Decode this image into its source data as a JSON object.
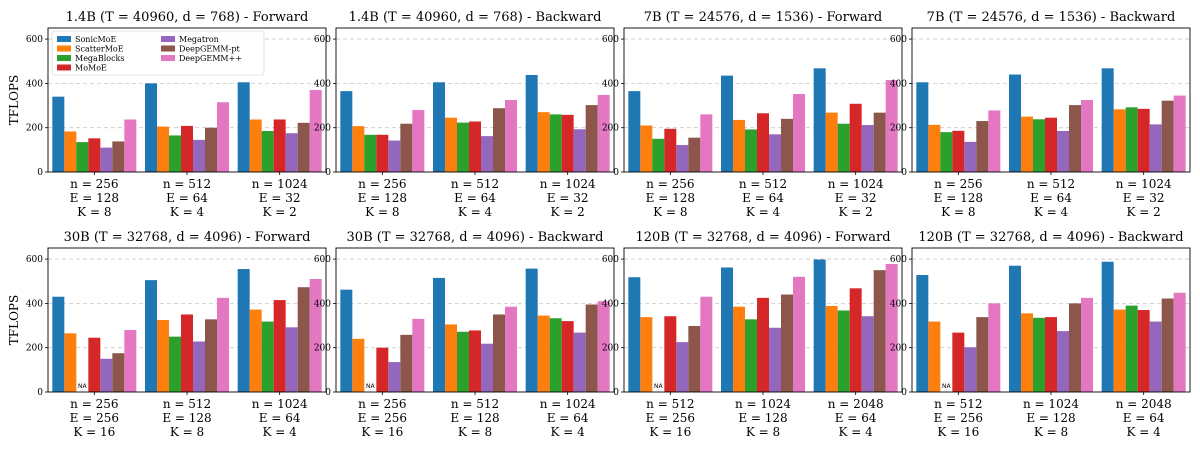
{
  "legend_items": [
    "SonicMoE",
    "ScatterMoE",
    "MegaBlocks",
    "MoMoE",
    "Megatron",
    "DeepGEMM-pt",
    "DeepGEMM++"
  ],
  "colors": [
    "#1f77b4",
    "#ff7f0e",
    "#2ca02c",
    "#d62728",
    "#9467bd",
    "#8c564b",
    "#e377c2"
  ],
  "na_label": "NA",
  "chart_data": [
    {
      "type": "bar",
      "title": "1.4B (T = 40960, d = 768) - Forward",
      "ylabel": "TFLOPS",
      "ylim": [
        0,
        650
      ],
      "yticks": [
        0,
        200,
        400,
        600
      ],
      "grid": "horizontal dashed",
      "legend_position": "top-left",
      "categories": [
        [
          "n = 256",
          "E = 128",
          "K = 8"
        ],
        [
          "n = 512",
          "E = 64",
          "K = 4"
        ],
        [
          "n = 1024",
          "E = 32",
          "K = 2"
        ]
      ],
      "series": [
        {
          "name": "SonicMoE",
          "values": [
            340,
            400,
            405
          ]
        },
        {
          "name": "ScatterMoE",
          "values": [
            183,
            205,
            237
          ]
        },
        {
          "name": "MegaBlocks",
          "values": [
            135,
            165,
            185
          ]
        },
        {
          "name": "MoMoE",
          "values": [
            152,
            208,
            237
          ]
        },
        {
          "name": "Megatron",
          "values": [
            110,
            145,
            175
          ]
        },
        {
          "name": "DeepGEMM-pt",
          "values": [
            138,
            200,
            222
          ]
        },
        {
          "name": "DeepGEMM++",
          "values": [
            237,
            315,
            370
          ]
        }
      ]
    },
    {
      "type": "bar",
      "title": "1.4B (T = 40960, d = 768) - Backward",
      "ylim": [
        0,
        650
      ],
      "yticks": [
        0,
        200,
        400,
        600
      ],
      "categories": [
        [
          "n = 256",
          "E = 128",
          "K = 8"
        ],
        [
          "n = 512",
          "E = 64",
          "K = 4"
        ],
        [
          "n = 1024",
          "E = 32",
          "K = 2"
        ]
      ],
      "series": [
        {
          "name": "SonicMoE",
          "values": [
            365,
            405,
            438
          ]
        },
        {
          "name": "ScatterMoE",
          "values": [
            207,
            245,
            270
          ]
        },
        {
          "name": "MegaBlocks",
          "values": [
            168,
            223,
            260
          ]
        },
        {
          "name": "MoMoE",
          "values": [
            168,
            228,
            258
          ]
        },
        {
          "name": "Megatron",
          "values": [
            142,
            162,
            193
          ]
        },
        {
          "name": "DeepGEMM-pt",
          "values": [
            218,
            288,
            302
          ]
        },
        {
          "name": "DeepGEMM++",
          "values": [
            280,
            325,
            348
          ]
        }
      ]
    },
    {
      "type": "bar",
      "title": "7B (T = 24576, d = 1536) - Forward",
      "ylim": [
        0,
        650
      ],
      "yticks": [
        0,
        200,
        400,
        600
      ],
      "categories": [
        [
          "n = 256",
          "E = 128",
          "K = 8"
        ],
        [
          "n = 512",
          "E = 64",
          "K = 4"
        ],
        [
          "n = 1024",
          "E = 32",
          "K = 2"
        ]
      ],
      "series": [
        {
          "name": "SonicMoE",
          "values": [
            365,
            435,
            468
          ]
        },
        {
          "name": "ScatterMoE",
          "values": [
            210,
            235,
            268
          ]
        },
        {
          "name": "MegaBlocks",
          "values": [
            150,
            192,
            218
          ]
        },
        {
          "name": "MoMoE",
          "values": [
            195,
            265,
            308
          ]
        },
        {
          "name": "Megatron",
          "values": [
            122,
            170,
            212
          ]
        },
        {
          "name": "DeepGEMM-pt",
          "values": [
            155,
            240,
            268
          ]
        },
        {
          "name": "DeepGEMM++",
          "values": [
            260,
            352,
            415
          ]
        }
      ]
    },
    {
      "type": "bar",
      "title": "7B (T = 24576, d = 1536) - Backward",
      "ylim": [
        0,
        650
      ],
      "yticks": [
        0,
        200,
        400,
        600
      ],
      "categories": [
        [
          "n = 256",
          "E = 128",
          "K = 8"
        ],
        [
          "n = 512",
          "E = 64",
          "K = 4"
        ],
        [
          "n = 1024",
          "E = 32",
          "K = 2"
        ]
      ],
      "series": [
        {
          "name": "SonicMoE",
          "values": [
            405,
            440,
            468
          ]
        },
        {
          "name": "ScatterMoE",
          "values": [
            213,
            250,
            283
          ]
        },
        {
          "name": "MegaBlocks",
          "values": [
            180,
            238,
            292
          ]
        },
        {
          "name": "MoMoE",
          "values": [
            186,
            245,
            285
          ]
        },
        {
          "name": "Megatron",
          "values": [
            136,
            185,
            215
          ]
        },
        {
          "name": "DeepGEMM-pt",
          "values": [
            230,
            302,
            322
          ]
        },
        {
          "name": "DeepGEMM++",
          "values": [
            278,
            325,
            345
          ]
        }
      ]
    },
    {
      "type": "bar",
      "title": "30B (T = 32768, d = 4096) - Forward",
      "ylabel": "TFLOPS",
      "ylim": [
        0,
        650
      ],
      "yticks": [
        0,
        200,
        400,
        600
      ],
      "categories": [
        [
          "n = 256",
          "E = 256",
          "K = 16"
        ],
        [
          "n = 512",
          "E = 128",
          "K = 8"
        ],
        [
          "n = 1024",
          "E = 64",
          "K = 4"
        ]
      ],
      "series": [
        {
          "name": "SonicMoE",
          "values": [
            430,
            505,
            555
          ]
        },
        {
          "name": "ScatterMoE",
          "values": [
            265,
            325,
            372
          ]
        },
        {
          "name": "MegaBlocks",
          "values": [
            null,
            250,
            318
          ]
        },
        {
          "name": "MoMoE",
          "values": [
            245,
            350,
            415
          ]
        },
        {
          "name": "Megatron",
          "values": [
            150,
            228,
            292
          ]
        },
        {
          "name": "DeepGEMM-pt",
          "values": [
            175,
            328,
            473
          ]
        },
        {
          "name": "DeepGEMM++",
          "values": [
            280,
            425,
            510
          ]
        }
      ]
    },
    {
      "type": "bar",
      "title": "30B (T = 32768, d = 4096) - Backward",
      "ylim": [
        0,
        650
      ],
      "yticks": [
        0,
        200,
        400,
        600
      ],
      "categories": [
        [
          "n = 256",
          "E = 256",
          "K = 16"
        ],
        [
          "n = 512",
          "E = 128",
          "K = 8"
        ],
        [
          "n = 1024",
          "E = 64",
          "K = 4"
        ]
      ],
      "series": [
        {
          "name": "SonicMoE",
          "values": [
            462,
            515,
            557
          ]
        },
        {
          "name": "ScatterMoE",
          "values": [
            240,
            305,
            345
          ]
        },
        {
          "name": "MegaBlocks",
          "values": [
            null,
            272,
            333
          ]
        },
        {
          "name": "MoMoE",
          "values": [
            200,
            278,
            320
          ]
        },
        {
          "name": "Megatron",
          "values": [
            135,
            218,
            268
          ]
        },
        {
          "name": "DeepGEMM-pt",
          "values": [
            258,
            350,
            395
          ]
        },
        {
          "name": "DeepGEMM++",
          "values": [
            330,
            385,
            410
          ]
        }
      ]
    },
    {
      "type": "bar",
      "title": "120B (T = 32768, d = 4096) - Forward",
      "ylim": [
        0,
        650
      ],
      "yticks": [
        0,
        200,
        400,
        600
      ],
      "categories": [
        [
          "n = 512",
          "E = 256",
          "K = 16"
        ],
        [
          "n = 1024",
          "E = 128",
          "K = 8"
        ],
        [
          "n = 2048",
          "E = 64",
          "K = 4"
        ]
      ],
      "series": [
        {
          "name": "SonicMoE",
          "values": [
            518,
            562,
            598
          ]
        },
        {
          "name": "ScatterMoE",
          "values": [
            338,
            385,
            388
          ]
        },
        {
          "name": "MegaBlocks",
          "values": [
            null,
            328,
            368
          ]
        },
        {
          "name": "MoMoE",
          "values": [
            342,
            425,
            468
          ]
        },
        {
          "name": "Megatron",
          "values": [
            225,
            290,
            342
          ]
        },
        {
          "name": "DeepGEMM-pt",
          "values": [
            298,
            440,
            550
          ]
        },
        {
          "name": "DeepGEMM++",
          "values": [
            430,
            520,
            578
          ]
        }
      ]
    },
    {
      "type": "bar",
      "title": "120B (T = 32768, d = 4096) - Backward",
      "ylim": [
        0,
        650
      ],
      "yticks": [
        0,
        200,
        400,
        600
      ],
      "categories": [
        [
          "n = 512",
          "E = 256",
          "K = 16"
        ],
        [
          "n = 1024",
          "E = 128",
          "K = 8"
        ],
        [
          "n = 2048",
          "E = 64",
          "K = 4"
        ]
      ],
      "series": [
        {
          "name": "SonicMoE",
          "values": [
            528,
            570,
            588
          ]
        },
        {
          "name": "ScatterMoE",
          "values": [
            318,
            355,
            372
          ]
        },
        {
          "name": "MegaBlocks",
          "values": [
            null,
            335,
            390
          ]
        },
        {
          "name": "MoMoE",
          "values": [
            268,
            338,
            370
          ]
        },
        {
          "name": "Megatron",
          "values": [
            202,
            275,
            318
          ]
        },
        {
          "name": "DeepGEMM-pt",
          "values": [
            338,
            400,
            422
          ]
        },
        {
          "name": "DeepGEMM++",
          "values": [
            400,
            425,
            448
          ]
        }
      ]
    }
  ]
}
